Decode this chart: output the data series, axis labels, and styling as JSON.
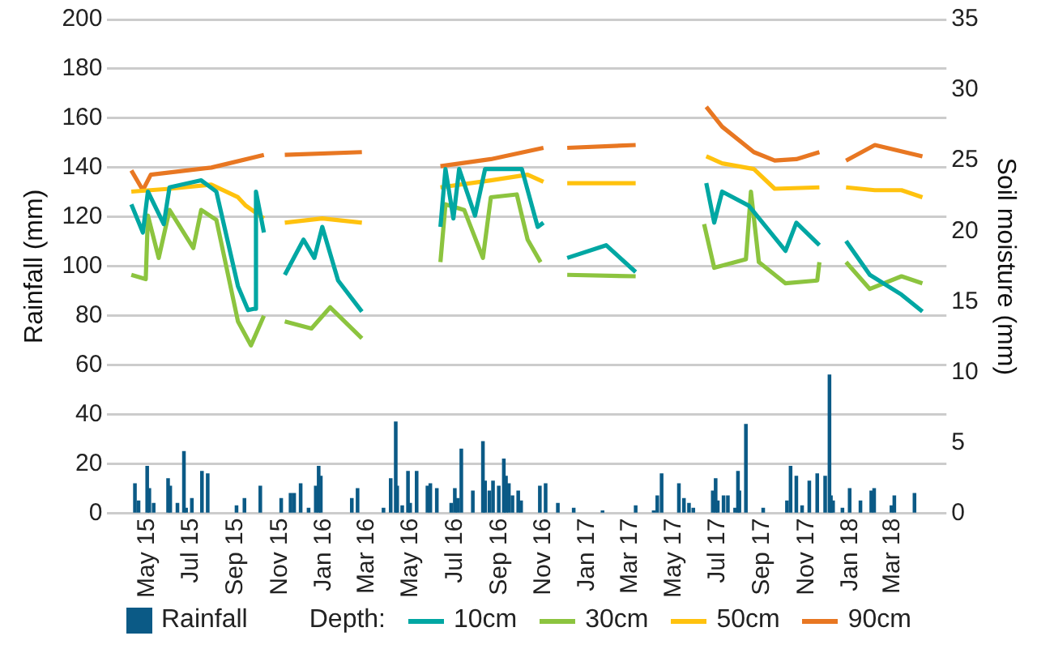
{
  "chart_data": {
    "type": "line",
    "ylabel": "Rainfall (mm)",
    "y2label": "Soil moisture (mm)",
    "legend_title": "Depth:",
    "xlim": [
      "2015-04-08",
      "2018-04-12"
    ],
    "xticks": [
      {
        "value": "2015-05-01",
        "label": "May 15"
      },
      {
        "value": "2015-07-01",
        "label": "Jul 15"
      },
      {
        "value": "2015-09-01",
        "label": "Sep 15"
      },
      {
        "value": "2015-11-01",
        "label": "Nov 15"
      },
      {
        "value": "2016-01-01",
        "label": "Jan 16"
      },
      {
        "value": "2016-03-01",
        "label": "Mar 16"
      },
      {
        "value": "2016-05-01",
        "label": "May 16"
      },
      {
        "value": "2016-07-01",
        "label": "Jul 16"
      },
      {
        "value": "2016-09-01",
        "label": "Sep 16"
      },
      {
        "value": "2016-11-01",
        "label": "Nov 16"
      },
      {
        "value": "2017-01-01",
        "label": "Jan 17"
      },
      {
        "value": "2017-03-01",
        "label": "Mar 17"
      },
      {
        "value": "2017-05-01",
        "label": "May 17"
      },
      {
        "value": "2017-07-01",
        "label": "Jul 17"
      },
      {
        "value": "2017-09-01",
        "label": "Sep 17"
      },
      {
        "value": "2017-11-01",
        "label": "Nov 17"
      },
      {
        "value": "2018-01-01",
        "label": "Jan 18"
      },
      {
        "value": "2018-03-01",
        "label": "Mar 18"
      }
    ],
    "ylim": [
      0,
      200
    ],
    "yticks": [
      0,
      20,
      40,
      60,
      80,
      100,
      120,
      140,
      160,
      180,
      200
    ],
    "y2lim": [
      0,
      35
    ],
    "y2ticks": [
      0,
      5,
      10,
      15,
      20,
      25,
      30,
      35
    ],
    "grid": "y",
    "legend": "bottom",
    "series": [
      {
        "name": "Rainfall",
        "type": "bar",
        "color": "#0b5a86",
        "x": [
          "2015-04-14",
          "2015-04-19",
          "2015-05-01",
          "2015-05-04",
          "2015-05-10",
          "2015-05-30",
          "2015-06-02",
          "2015-06-12",
          "2015-06-21",
          "2015-06-24",
          "2015-07-02",
          "2015-07-16",
          "2015-07-24",
          "2015-09-02",
          "2015-09-13",
          "2015-10-05",
          "2015-11-03",
          "2015-11-16",
          "2015-11-21",
          "2015-11-30",
          "2015-12-11",
          "2015-12-21",
          "2015-12-25",
          "2015-12-28",
          "2016-02-09",
          "2016-02-17",
          "2016-03-24",
          "2016-04-03",
          "2016-04-10",
          "2016-04-12",
          "2016-04-19",
          "2016-04-27",
          "2016-04-30",
          "2016-05-09",
          "2016-05-24",
          "2016-05-28",
          "2016-06-06",
          "2016-06-26",
          "2016-07-01",
          "2016-07-05",
          "2016-07-10",
          "2016-07-26",
          "2016-08-09",
          "2016-08-12",
          "2016-08-18",
          "2016-08-23",
          "2016-08-31",
          "2016-09-07",
          "2016-09-10",
          "2016-09-14",
          "2016-09-19",
          "2016-09-27",
          "2016-10-01",
          "2016-10-27",
          "2016-11-04",
          "2016-11-21",
          "2016-12-13",
          "2017-01-22",
          "2017-03-09",
          "2017-04-03",
          "2017-04-08",
          "2017-04-14",
          "2017-05-08",
          "2017-05-15",
          "2017-05-22",
          "2017-05-28",
          "2017-06-24",
          "2017-06-28",
          "2017-07-01",
          "2017-07-09",
          "2017-07-15",
          "2017-07-25",
          "2017-07-29",
          "2017-07-31",
          "2017-08-09",
          "2017-09-02",
          "2017-10-05",
          "2017-10-10",
          "2017-10-18",
          "2017-10-26",
          "2017-11-05",
          "2017-11-16",
          "2017-11-27",
          "2017-12-03",
          "2017-12-05",
          "2017-12-08",
          "2017-12-21",
          "2017-12-31",
          "2018-01-15",
          "2018-01-30",
          "2018-02-03",
          "2018-02-27",
          "2018-03-03",
          "2018-03-31"
        ],
        "values": [
          12,
          5,
          19,
          10,
          4,
          14,
          11,
          4,
          25,
          2,
          6,
          17,
          16,
          3,
          6,
          11,
          6,
          8,
          8,
          12,
          2,
          11,
          19,
          15,
          6,
          10,
          2,
          14,
          37,
          11,
          3,
          17,
          4,
          17,
          11,
          12,
          10,
          4,
          10,
          6,
          26,
          9,
          29,
          13,
          9,
          13,
          11,
          22,
          15,
          12,
          7,
          9,
          5,
          11,
          12,
          4,
          2,
          1,
          3,
          1,
          7,
          16,
          12,
          6,
          4,
          2,
          9,
          14,
          5,
          7,
          7,
          2,
          17,
          9,
          36,
          2,
          5,
          19,
          15,
          3,
          13,
          16,
          15,
          56,
          7,
          5,
          2,
          10,
          5,
          9,
          10,
          3,
          7,
          8
        ]
      },
      {
        "name": "10cm",
        "axis": "y2",
        "color": "#00a7a3",
        "x": [
          "2015-04-09",
          "2015-04-25",
          "2015-05-02",
          "2015-05-24",
          "2015-06-01",
          "2015-07-15",
          "2015-08-05",
          "2015-09-04",
          "2015-09-18",
          "2015-09-27",
          "2015-09-29",
          "2015-10-10",
          "2015-10-25",
          "2015-11-08",
          "2015-12-04",
          "2015-12-19",
          "2015-12-30",
          "2016-01-21",
          "2016-02-23",
          "2016-04-15",
          "2016-06-11",
          "2016-06-18",
          "2016-06-29",
          "2016-07-07",
          "2016-07-29",
          "2016-08-12",
          "2016-10-02",
          "2016-10-24",
          "2016-11-01",
          "2016-11-18",
          "2016-12-04",
          "2017-01-27",
          "2017-03-09",
          "2017-05-01",
          "2017-06-15",
          "2017-06-26",
          "2017-07-07",
          "2017-08-13",
          "2017-10-03",
          "2017-10-18",
          "2017-11-19",
          "2017-12-05",
          "2017-12-26",
          "2018-01-28",
          "2018-03-13",
          "2018-04-11"
        ],
        "values": [
          21.9,
          19.9,
          22.8,
          20.5,
          23.1,
          23.6,
          22.8,
          16.1,
          14.4,
          14.5,
          22.8,
          19.9,
          null,
          16.9,
          19.4,
          18.1,
          20.3,
          16.5,
          14.3,
          null,
          20.3,
          24.4,
          20.9,
          24.4,
          21.1,
          24.4,
          24.4,
          20.3,
          20.6,
          null,
          18.1,
          19,
          17.1,
          null,
          23.4,
          20.6,
          22.8,
          21.8,
          18.6,
          20.6,
          19,
          null,
          19.3,
          16.9,
          15.5,
          14.3
        ]
      },
      {
        "name": "30cm",
        "axis": "y2",
        "color": "#8cc43f",
        "x": [
          "2015-04-09",
          "2015-04-29",
          "2015-05-02",
          "2015-05-17",
          "2015-06-01",
          "2015-07-04",
          "2015-07-15",
          "2015-08-05",
          "2015-09-04",
          "2015-09-22",
          "2015-10-10",
          "2015-10-25",
          "2015-11-08",
          "2015-12-15",
          "2016-01-10",
          "2016-02-23",
          "2016-04-15",
          "2016-06-11",
          "2016-06-18",
          "2016-07-14",
          "2016-08-09",
          "2016-08-20",
          "2016-09-25",
          "2016-10-10",
          "2016-10-28",
          "2016-11-18",
          "2016-12-04",
          "2017-03-09",
          "2017-05-01",
          "2017-06-12",
          "2017-06-26",
          "2017-08-09",
          "2017-08-16",
          "2017-08-27",
          "2017-10-03",
          "2017-11-16",
          "2017-11-19",
          "2017-12-05",
          "2017-12-26",
          "2018-01-28",
          "2018-03-13",
          "2018-04-11"
        ],
        "values": [
          16.9,
          16.6,
          21.1,
          18.1,
          21.5,
          18.8,
          21.5,
          20.8,
          13.6,
          11.9,
          14,
          null,
          13.6,
          13.1,
          14.6,
          12.4,
          null,
          17.8,
          21.9,
          21.5,
          18.1,
          22.4,
          22.6,
          19.4,
          17.8,
          null,
          16.9,
          16.8,
          null,
          20.5,
          17.4,
          18,
          22.8,
          17.8,
          16.3,
          16.5,
          17.8,
          null,
          17.8,
          15.9,
          16.8,
          16.3
        ]
      },
      {
        "name": "50cm",
        "axis": "y2",
        "color": "#ffc20e",
        "x": [
          "2015-04-09",
          "2015-06-01",
          "2015-07-29",
          "2015-09-04",
          "2015-09-15",
          "2015-10-10",
          "2015-10-25",
          "2015-11-08",
          "2015-12-30",
          "2016-02-23",
          "2016-04-15",
          "2016-06-11",
          "2016-08-20",
          "2016-10-10",
          "2016-11-01",
          "2016-11-18",
          "2016-12-04",
          "2017-03-09",
          "2017-05-01",
          "2017-06-15",
          "2017-07-07",
          "2017-08-20",
          "2017-09-18",
          "2017-11-19",
          "2017-12-05",
          "2017-12-26",
          "2018-02-04",
          "2018-03-13",
          "2018-04-11"
        ],
        "values": [
          22.8,
          23,
          23.3,
          22.4,
          21.8,
          20.9,
          null,
          20.6,
          20.9,
          20.6,
          null,
          23.1,
          23.6,
          24,
          23.5,
          null,
          23.4,
          23.4,
          null,
          25.3,
          24.8,
          24.4,
          23,
          23.1,
          null,
          23.1,
          22.9,
          22.9,
          22.4
        ]
      },
      {
        "name": "90cm",
        "axis": "y2",
        "color": "#e87722",
        "x": [
          "2015-04-09",
          "2015-04-25",
          "2015-05-06",
          "2015-07-29",
          "2015-10-10",
          "2015-10-25",
          "2015-11-08",
          "2016-02-23",
          "2016-04-15",
          "2016-06-11",
          "2016-08-20",
          "2016-11-01",
          "2016-11-18",
          "2016-12-04",
          "2017-03-09",
          "2017-05-01",
          "2017-06-15",
          "2017-07-07",
          "2017-08-20",
          "2017-09-18",
          "2017-10-18",
          "2017-11-19",
          "2017-12-05",
          "2017-12-26",
          "2018-02-04",
          "2018-04-11"
        ],
        "values": [
          24.3,
          22.9,
          24,
          24.5,
          25.4,
          null,
          25.4,
          25.6,
          null,
          24.6,
          25.1,
          25.9,
          null,
          25.9,
          26.1,
          null,
          28.8,
          27.4,
          25.6,
          25,
          25.1,
          25.6,
          null,
          25,
          26.1,
          25.3
        ]
      }
    ]
  }
}
